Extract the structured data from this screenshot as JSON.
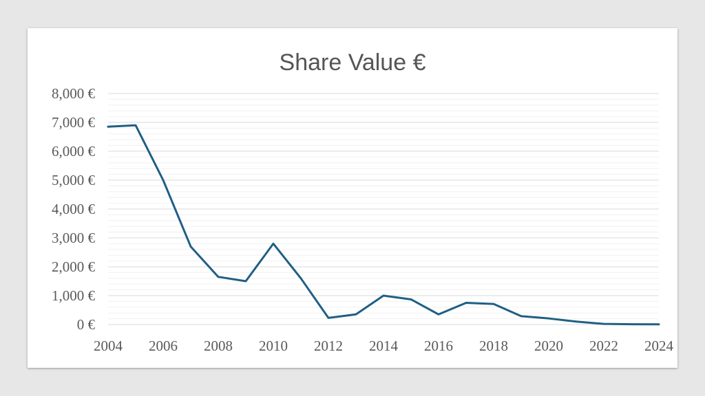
{
  "chart_data": {
    "type": "line",
    "title": "Share Value €",
    "xlabel": "",
    "ylabel": "",
    "x": [
      2004,
      2005,
      2006,
      2007,
      2008,
      2009,
      2010,
      2011,
      2012,
      2013,
      2014,
      2015,
      2016,
      2017,
      2018,
      2019,
      2020,
      2021,
      2022,
      2023,
      2024
    ],
    "series": [
      {
        "name": "Share Value €",
        "color": "#1f5f85",
        "values": [
          6850,
          6900,
          5000,
          2700,
          1650,
          1500,
          2800,
          1600,
          230,
          350,
          1000,
          870,
          350,
          750,
          710,
          290,
          210,
          100,
          20,
          10,
          5
        ]
      }
    ],
    "xlim": [
      2004,
      2024
    ],
    "ylim": [
      0,
      8000
    ],
    "yticks": [
      0,
      1000,
      2000,
      3000,
      4000,
      5000,
      6000,
      7000,
      8000
    ],
    "ytick_labels": [
      "0 €",
      "1,000 €",
      "2,000 €",
      "3,000 €",
      "4,000 €",
      "5,000 €",
      "6,000 €",
      "7,000 €",
      "8,000 €"
    ],
    "xticks": [
      2004,
      2006,
      2008,
      2010,
      2012,
      2014,
      2016,
      2018,
      2020,
      2022,
      2024
    ],
    "xtick_labels": [
      "2004",
      "2006",
      "2008",
      "2010",
      "2012",
      "2014",
      "2016",
      "2018",
      "2020",
      "2022",
      "2024"
    ],
    "grid": true,
    "legend": "none"
  }
}
